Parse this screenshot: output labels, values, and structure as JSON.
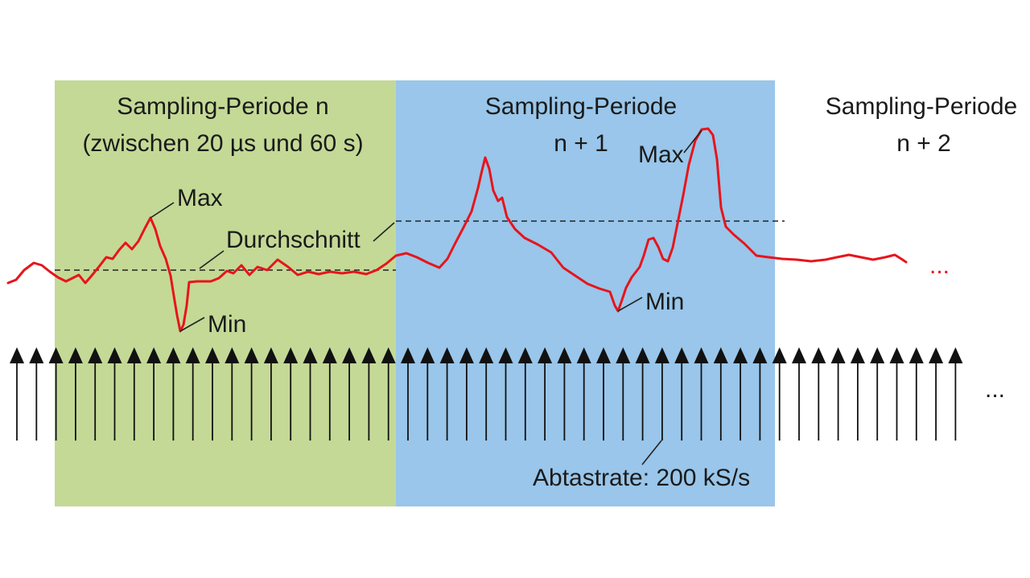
{
  "periods": [
    {
      "line1": "Sampling-Periode n",
      "line2": "(zwischen 20 µs und 60 s)",
      "color": "#c4d996"
    },
    {
      "line1": "Sampling-Periode",
      "line2": "n + 1",
      "color": "#99c6ea"
    },
    {
      "line1": "Sampling-Periode",
      "line2": "n + 2"
    }
  ],
  "labels": {
    "max_1": "Max",
    "min_1": "Min",
    "average": "Durchschnitt",
    "max_2": "Max",
    "min_2": "Min",
    "sample_rate": "Abtastrate: 200 kS/s",
    "continuation_signal": "...",
    "continuation_samples": "..."
  },
  "colors": {
    "signal": "#e8141b",
    "arrows": "#111111",
    "text": "#1a1a1a",
    "signal_dots": "#e8141b"
  }
}
